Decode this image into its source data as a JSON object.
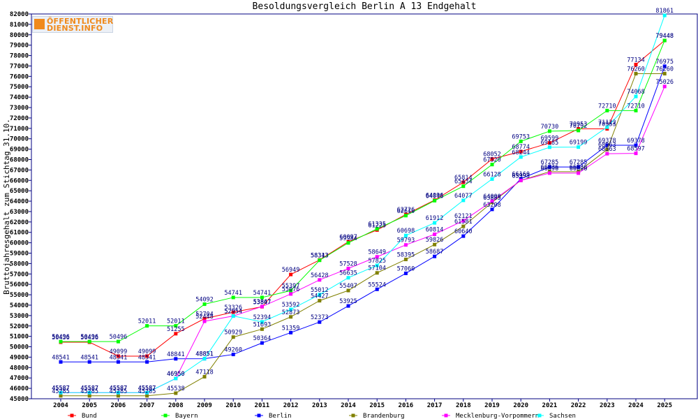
{
  "chart_data": {
    "type": "line",
    "title": "Besoldungsvergleich Berlin A 13 Endgehalt",
    "ylabel": "Bruttojahresgehalt zum Stichtag 31.10.",
    "xlabel": "",
    "x": [
      "2004",
      "2005",
      "2006",
      "2007",
      "2008",
      "2009",
      "2010",
      "2011",
      "2012",
      "2013",
      "2014",
      "2015",
      "2016",
      "2017",
      "2018",
      "2019",
      "2020",
      "2021",
      "2022",
      "2023",
      "2024",
      "2025"
    ],
    "ylim": [
      45000,
      82000
    ],
    "ytick_step": 1000,
    "grid": false,
    "legend_position": "bottom",
    "series": [
      {
        "name": "Bund",
        "color": "#ff0000",
        "values": [
          50436,
          50436,
          49099,
          49099,
          51255,
          52704,
          53326,
          53847,
          56949,
          58343,
          60097,
          61225,
          62726,
          64096,
          65814,
          68052,
          68774,
          69599,
          70953,
          70953,
          77134,
          79448
        ]
      },
      {
        "name": "Bayern",
        "color": "#00ff00",
        "values": [
          50496,
          50496,
          50496,
          52011,
          52011,
          54092,
          54741,
          54741,
          55397,
          58313,
          59984,
          61335,
          62610,
          64046,
          65434,
          67520,
          69753,
          70730,
          70792,
          72710,
          72710,
          79448
        ]
      },
      {
        "name": "Berlin",
        "color": "#0000ff",
        "values": [
          48541,
          48541,
          48541,
          48541,
          48841,
          48851,
          49260,
          50364,
          51359,
          52373,
          53925,
          55524,
          57060,
          58687,
          60640,
          63208,
          66160,
          67285,
          67285,
          69378,
          69378,
          76975
        ]
      },
      {
        "name": "Brandenburg",
        "color": "#808000",
        "values": [
          45285,
          45285,
          45285,
          45285,
          45538,
          47118,
          50929,
          51693,
          52873,
          54427,
          55407,
          57104,
          58395,
          59826,
          61581,
          63885,
          65993,
          66836,
          66836,
          68963,
          76260,
          76260
        ]
      },
      {
        "name": "Mecklenburg-Vorpommern",
        "color": "#ff00ff",
        "values": [
          45587,
          45587,
          45587,
          45587,
          46950,
          52448,
          52954,
          53867,
          55076,
          56428,
          57528,
          58649,
          59793,
          60814,
          62121,
          64000,
          65993,
          66696,
          66696,
          68563,
          68597,
          75026
        ]
      },
      {
        "name": "Sachsen",
        "color": "#00ffff",
        "values": [
          45587,
          45587,
          45587,
          45587,
          46950,
          48851,
          52954,
          52394,
          53592,
          55012,
          56635,
          57825,
          60698,
          61912,
          64077,
          66128,
          68244,
          69185,
          69199,
          71122,
          74068,
          81861
        ]
      }
    ]
  }
}
